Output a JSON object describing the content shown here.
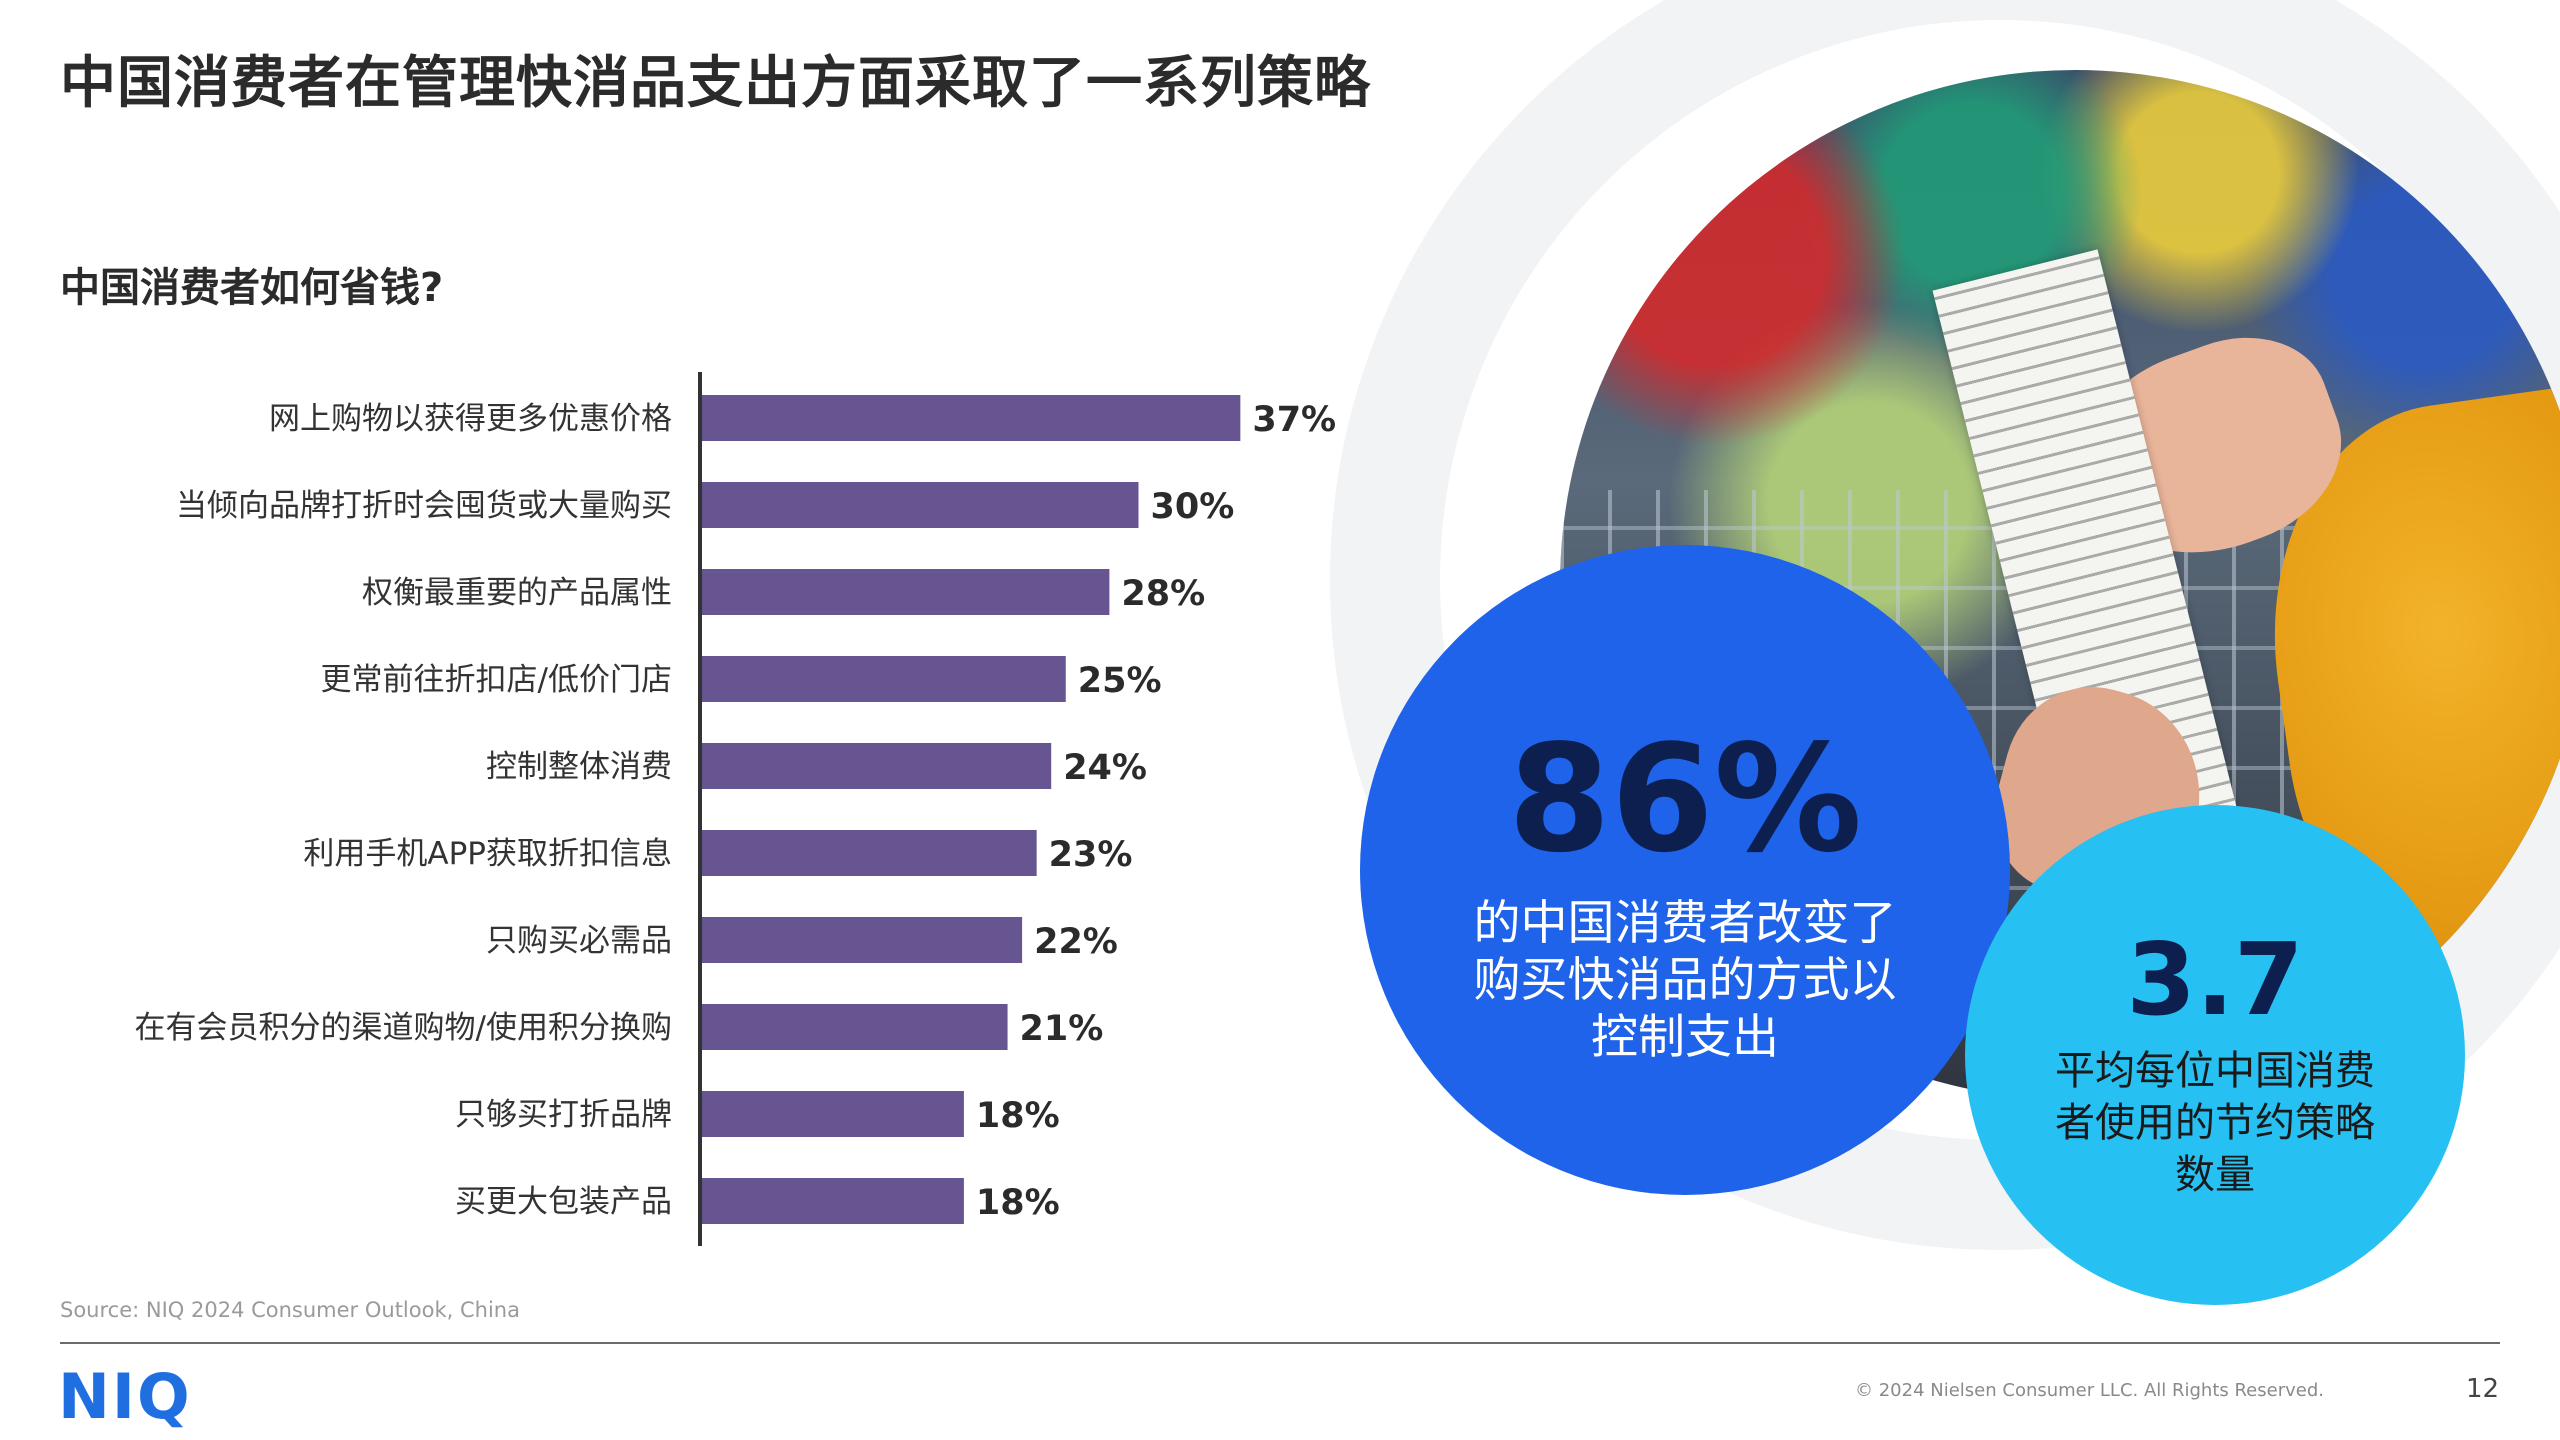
{
  "page": {
    "title": "中国消费者在管理快消品支出方面采取了一系列策略",
    "source": "Source: NIQ 2024 Consumer Outlook, China",
    "logo_text": "NIQ",
    "copyright": "© 2024 Nielsen Consumer LLC. All Rights Reserved.",
    "page_number": "12"
  },
  "stats": {
    "primary_value": "86%",
    "primary_text": "的中国消费者改变了购买快消品的方式以控制支出",
    "secondary_value": "3.7",
    "secondary_text": "平均每位中国消费者使用的节约策略数量"
  },
  "colors": {
    "bar": "#665591",
    "primary_circle": "#1e63e9",
    "secondary_circle": "#26c0f3",
    "logo": "#1f6fe0"
  },
  "chart_data": {
    "type": "bar",
    "orientation": "horizontal",
    "title": "中国消费者如何省钱?",
    "xlabel": "",
    "ylabel": "",
    "xlim": [
      0,
      100
    ],
    "grid": false,
    "categories": [
      "网上购物以获得更多优惠价格",
      "当倾向品牌打折时会囤货或大量购买",
      "权衡最重要的产品属性",
      "更常前往折扣店/低价门店",
      "控制整体消费",
      "利用手机APP获取折扣信息",
      "只购买必需品",
      "在有会员积分的渠道购物/使用积分换购",
      "只够买打折品牌",
      "买更大包装产品"
    ],
    "values": [
      37,
      30,
      28,
      25,
      24,
      23,
      22,
      21,
      18,
      18
    ],
    "value_labels": [
      "37%",
      "30%",
      "28%",
      "25%",
      "24%",
      "23%",
      "22%",
      "21%",
      "18%",
      "18%"
    ]
  }
}
